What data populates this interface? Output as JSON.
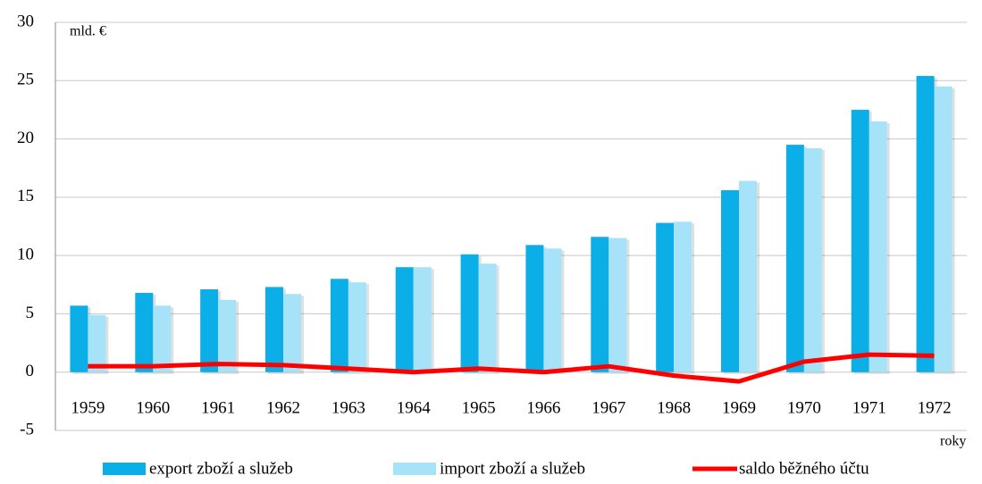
{
  "chart_data": {
    "type": "bar",
    "y_label": "mld. €",
    "x_label": "roky",
    "categories": [
      "1959",
      "1960",
      "1961",
      "1962",
      "1963",
      "1964",
      "1965",
      "1966",
      "1967",
      "1968",
      "1969",
      "1970",
      "1971",
      "1972"
    ],
    "series": [
      {
        "name": "export zboží a služeb",
        "type": "bar",
        "color": "#0caee8",
        "values": [
          5.7,
          6.8,
          7.1,
          7.3,
          8.0,
          9.0,
          10.1,
          10.9,
          11.6,
          12.8,
          15.6,
          19.5,
          22.5,
          25.4
        ]
      },
      {
        "name": "import zboží a služeb",
        "type": "bar",
        "color": "#a6e3f8",
        "values": [
          4.9,
          5.7,
          6.2,
          6.7,
          7.7,
          9.0,
          9.3,
          10.6,
          11.5,
          12.9,
          16.4,
          19.2,
          21.5,
          24.5
        ]
      },
      {
        "name": "saldo běžného účtu",
        "type": "line",
        "color": "#ff0000",
        "values": [
          0.5,
          0.5,
          0.7,
          0.6,
          0.3,
          0.0,
          0.3,
          0.0,
          0.5,
          -0.3,
          -0.8,
          0.9,
          1.5,
          1.4
        ]
      }
    ],
    "ylim": [
      -5,
      30
    ],
    "yticks": [
      -5,
      0,
      5,
      10,
      15,
      20,
      25,
      30
    ],
    "grid": true
  }
}
